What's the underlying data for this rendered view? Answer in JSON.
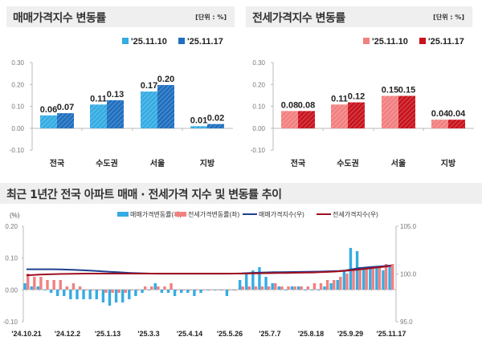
{
  "colors": {
    "sale_prev": "#35ace3",
    "sale_curr": "#1f6fbf",
    "jeonse_prev": "#f28080",
    "jeonse_curr": "#c8141e",
    "sale_index_line": "#1f3f8f",
    "jeonse_index_line": "#a01020"
  },
  "chart_data": [
    {
      "type": "bar",
      "title": "매매가격지수 변동률",
      "unit_label": "[단위 : %]",
      "categories": [
        "전국",
        "수도권",
        "서울",
        "지방"
      ],
      "series": [
        {
          "name": "'25.11.10",
          "values": [
            0.06,
            0.11,
            0.17,
            0.01
          ],
          "labels": [
            "0.06",
            "0.11",
            "0.17",
            "0.01"
          ]
        },
        {
          "name": "'25.11.17",
          "values": [
            0.07,
            0.13,
            0.2,
            0.02
          ],
          "labels": [
            "0.07",
            "0.13",
            "0.20",
            "0.02"
          ]
        }
      ],
      "ylim": [
        -0.1,
        0.3
      ],
      "yticks": [
        "0.30",
        "0.20",
        "0.10",
        "0.00",
        "-0.10"
      ],
      "legend": "top-right"
    },
    {
      "type": "bar",
      "title": "전세가격지수 변동률",
      "unit_label": "[단위 : %]",
      "categories": [
        "전국",
        "수도권",
        "서울",
        "지방"
      ],
      "series": [
        {
          "name": "'25.11.10",
          "values": [
            0.08,
            0.11,
            0.15,
            0.04
          ],
          "labels": [
            "0.08",
            "0.11",
            "0.15",
            "0.04"
          ]
        },
        {
          "name": "'25.11.17",
          "values": [
            0.08,
            0.12,
            0.15,
            0.04
          ],
          "labels": [
            "0.08",
            "0.12",
            "0.15",
            "0.04"
          ]
        }
      ],
      "ylim": [
        -0.1,
        0.3
      ],
      "yticks": [
        "0.30",
        "0.20",
        "0.10",
        "0.00",
        "-0.10"
      ],
      "legend": "top-right"
    },
    {
      "type": "bar+line",
      "title": "최근 1년간 전국 아파트 매매 · 전세가격 지수 및 변동률 추이",
      "ylabel_left": "(%)",
      "ylim_left": [
        -0.1,
        0.2
      ],
      "yticks_left": [
        "0.20",
        "0.10",
        "0.00",
        "-0.10"
      ],
      "ylim_right": [
        95.0,
        105.0
      ],
      "yticks_right": [
        "105.0",
        "100.0",
        "95.0"
      ],
      "xtick_labels": [
        "'24.10.21",
        "'24.12.2",
        "'25.1.13",
        "'25.3.3",
        "'25.4.14",
        "'25.5.26",
        "'25.7.7",
        "'25.8.18",
        "'25.9.29",
        "'25.11.17"
      ],
      "legend": "top",
      "series": [
        {
          "name": "매매가격변동률(좌)",
          "type": "bar",
          "axis": "left",
          "values": [
            0.02,
            0.01,
            0.01,
            0.0,
            -0.01,
            -0.02,
            -0.02,
            -0.03,
            -0.03,
            -0.03,
            -0.03,
            -0.03,
            -0.04,
            -0.05,
            -0.04,
            -0.04,
            -0.03,
            -0.02,
            -0.01,
            0.0,
            0.02,
            -0.01,
            -0.01,
            -0.02,
            -0.01,
            -0.01,
            -0.02,
            -0.01,
            0.0,
            0.0,
            0.0,
            -0.02,
            0.0,
            0.03,
            0.05,
            0.06,
            0.07,
            0.04,
            0.02,
            0.01,
            0.0,
            0.01,
            0.01,
            0.0,
            0.0,
            0.0,
            0.01,
            0.02,
            0.03,
            0.06,
            0.13,
            0.12,
            0.07,
            0.07,
            0.07,
            0.06,
            0.07
          ]
        },
        {
          "name": "전세가격변동률(좌)",
          "type": "bar",
          "axis": "left",
          "values": [
            0.05,
            0.04,
            0.04,
            0.03,
            0.03,
            0.03,
            0.01,
            0.02,
            0.01,
            0.0,
            0.0,
            0.0,
            -0.01,
            -0.01,
            -0.01,
            -0.01,
            0.0,
            0.0,
            0.01,
            0.01,
            0.01,
            0.01,
            0.02,
            0.0,
            0.0,
            0.0,
            0.0,
            0.0,
            0.0,
            0.0,
            0.0,
            0.0,
            0.0,
            0.01,
            0.01,
            0.01,
            0.01,
            0.01,
            0.02,
            0.01,
            0.01,
            0.01,
            0.01,
            0.01,
            0.02,
            0.02,
            0.03,
            0.03,
            0.04,
            0.05,
            0.06,
            0.07,
            0.07,
            0.07,
            0.07,
            0.08,
            0.08
          ]
        },
        {
          "name": "매매가격지수(우)",
          "type": "line",
          "axis": "right",
          "values": [
            100.45,
            100.45,
            100.45,
            100.45,
            100.45,
            100.44,
            100.42,
            100.4,
            100.37,
            100.34,
            100.3,
            100.26,
            100.22,
            100.18,
            100.14,
            100.1,
            100.07,
            100.04,
            100.02,
            100.0,
            99.99,
            99.99,
            99.99,
            99.99,
            99.99,
            99.99,
            99.99,
            99.99,
            99.99,
            99.99,
            99.99,
            99.99,
            100.0,
            100.02,
            100.05,
            100.08,
            100.11,
            100.13,
            100.14,
            100.15,
            100.16,
            100.17,
            100.18,
            100.19,
            100.2,
            100.21,
            100.23,
            100.25,
            100.28,
            100.33,
            100.45,
            100.56,
            100.63,
            100.69,
            100.74,
            100.79,
            100.85
          ]
        },
        {
          "name": "전세가격지수(우)",
          "type": "line",
          "axis": "right",
          "values": [
            99.82,
            99.86,
            99.89,
            99.92,
            99.94,
            99.96,
            99.97,
            99.98,
            99.99,
            100.0,
            100.0,
            100.0,
            100.0,
            100.0,
            100.0,
            100.0,
            100.0,
            100.0,
            100.0,
            100.0,
            100.0,
            100.0,
            100.0,
            100.0,
            100.0,
            100.0,
            100.0,
            100.0,
            100.0,
            100.0,
            100.0,
            100.0,
            100.0,
            100.0,
            100.01,
            100.02,
            100.03,
            100.04,
            100.05,
            100.06,
            100.07,
            100.08,
            100.09,
            100.1,
            100.12,
            100.14,
            100.17,
            100.2,
            100.24,
            100.29,
            100.35,
            100.42,
            100.5,
            100.58,
            100.65,
            100.72,
            100.8
          ]
        }
      ]
    }
  ]
}
